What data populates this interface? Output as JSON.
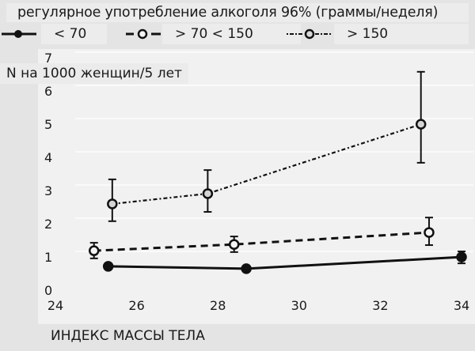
{
  "chart_data": {
    "type": "line",
    "title": "регулярное употребление алкоголя 96% (граммы/неделя)",
    "xlabel": "ИНДЕКС МАССЫ ТЕЛА",
    "ylabel": "N на 1000 женщин/5 лет",
    "xlim": [
      24,
      34
    ],
    "ylim": [
      0,
      7
    ],
    "x_ticks": [
      "24",
      "26",
      "28",
      "30",
      "32",
      "34"
    ],
    "y_ticks": [
      "0",
      "1",
      "2",
      "3",
      "4",
      "5",
      "6",
      "7"
    ],
    "grid": "horizontal faint",
    "legend_position": "top",
    "series": [
      {
        "name": "< 70",
        "line_style": "solid",
        "marker": "filled circle",
        "x": [
          25.3,
          28.7,
          34.0
        ],
        "values": [
          0.74,
          0.67,
          1.02
        ],
        "error_low": [
          0.74,
          0.67,
          0.83
        ],
        "error_high": [
          0.74,
          0.67,
          1.19
        ]
      },
      {
        "name": "> 70 < 150",
        "line_style": "dashed",
        "marker": "open circle",
        "x": [
          24.95,
          28.4,
          33.2
        ],
        "values": [
          1.21,
          1.4,
          1.76
        ],
        "error_low": [
          0.98,
          1.17,
          1.38
        ],
        "error_high": [
          1.45,
          1.64,
          2.21
        ]
      },
      {
        "name": "> 150",
        "line_style": "dash-dot",
        "marker": "open circle",
        "x": [
          25.4,
          27.75,
          33.0
        ],
        "values": [
          2.62,
          2.93,
          5.02
        ],
        "error_low": [
          2.1,
          2.38,
          3.86
        ],
        "error_high": [
          3.36,
          3.64,
          6.6
        ]
      }
    ]
  },
  "legend": {
    "title": "регулярное употребление алкоголя 96% (граммы/неделя)",
    "items": [
      {
        "label": "< 70"
      },
      {
        "label": "> 70 < 150"
      },
      {
        "label": "> 150"
      }
    ]
  },
  "axes": {
    "ylabel": "N на 1000 женщин/5 лет",
    "xlabel": "ИНДЕКС МАССЫ ТЕЛА"
  }
}
